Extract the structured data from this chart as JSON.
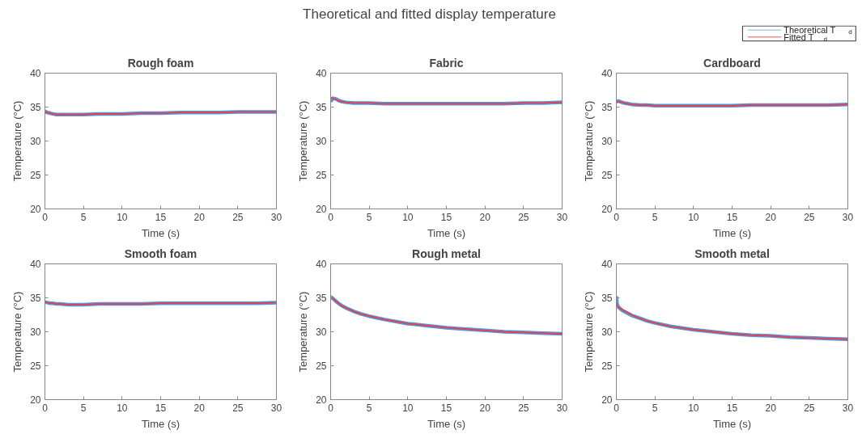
{
  "chart_data": [
    {
      "type": "line",
      "title": "Rough foam",
      "annotations": [
        "Theoretical and fitted display temperature"
      ],
      "xlabel": "Time (s)",
      "ylabel": "Temperature (°C)",
      "xlim": [
        0,
        30
      ],
      "ylim": [
        20,
        40
      ],
      "xticks": [
        0,
        5,
        10,
        15,
        20,
        25,
        30
      ],
      "yticks": [
        20,
        25,
        30,
        35,
        40
      ],
      "legend": "top right",
      "x": [
        0,
        0.3,
        0.7,
        1,
        1.5,
        2,
        3,
        4,
        5,
        7,
        10,
        12.5,
        15,
        17.5,
        20,
        22.5,
        25,
        27.5,
        30
      ],
      "series": [
        {
          "name": "Theoretical T$_{d}$",
          "color": "#4f9bd9",
          "values": [
            34.4,
            34.2,
            34.1,
            34.0,
            33.9,
            33.9,
            33.9,
            33.9,
            33.9,
            34.0,
            34.0,
            34.1,
            34.1,
            34.2,
            34.2,
            34.2,
            34.3,
            34.3,
            34.3
          ]
        },
        {
          "name": "Fitted T$_{d}$",
          "color": "#f03a50",
          "values": [
            34.3,
            34.2,
            34.1,
            34.0,
            33.9,
            33.9,
            33.9,
            33.9,
            33.9,
            34.0,
            34.0,
            34.1,
            34.1,
            34.2,
            34.2,
            34.2,
            34.3,
            34.3,
            34.3
          ]
        }
      ]
    },
    {
      "type": "line",
      "title": "Fabric",
      "xlabel": "Time (s)",
      "ylabel": "Temperature (°C)",
      "xlim": [
        0,
        30
      ],
      "ylim": [
        20,
        40
      ],
      "xticks": [
        0,
        5,
        10,
        15,
        20,
        25,
        30
      ],
      "yticks": [
        20,
        25,
        30,
        35,
        40
      ],
      "x": [
        0,
        0.3,
        0.7,
        1,
        1.5,
        2,
        3,
        4,
        5,
        7,
        10,
        12.5,
        15,
        17.5,
        20,
        22.5,
        25,
        27.5,
        30
      ],
      "series": [
        {
          "color": "#4f9bd9",
          "values": [
            35.8,
            36.3,
            36.2,
            36.0,
            35.8,
            35.7,
            35.6,
            35.6,
            35.6,
            35.5,
            35.5,
            35.5,
            35.5,
            35.5,
            35.5,
            35.5,
            35.6,
            35.6,
            35.7
          ]
        },
        {
          "color": "#f03a50",
          "values": [
            36.4,
            36.3,
            36.1,
            35.9,
            35.8,
            35.7,
            35.6,
            35.6,
            35.6,
            35.5,
            35.5,
            35.5,
            35.5,
            35.5,
            35.5,
            35.5,
            35.6,
            35.6,
            35.7
          ]
        }
      ]
    },
    {
      "type": "line",
      "title": "Cardboard",
      "xlabel": "Time (s)",
      "ylabel": "Temperature (°C)",
      "xlim": [
        0,
        30
      ],
      "ylim": [
        20,
        40
      ],
      "xticks": [
        0,
        5,
        10,
        15,
        20,
        25,
        30
      ],
      "yticks": [
        20,
        25,
        30,
        35,
        40
      ],
      "x": [
        0,
        0.3,
        0.7,
        1,
        1.5,
        2,
        3,
        4,
        5,
        7,
        10,
        12.5,
        15,
        17.5,
        20,
        22.5,
        25,
        27.5,
        30
      ],
      "series": [
        {
          "color": "#4f9bd9",
          "values": [
            35.8,
            35.9,
            35.7,
            35.6,
            35.5,
            35.4,
            35.3,
            35.3,
            35.2,
            35.2,
            35.2,
            35.2,
            35.2,
            35.3,
            35.3,
            35.3,
            35.3,
            35.3,
            35.4
          ]
        },
        {
          "color": "#f03a50",
          "values": [
            35.8,
            35.8,
            35.7,
            35.6,
            35.5,
            35.4,
            35.3,
            35.3,
            35.2,
            35.2,
            35.2,
            35.2,
            35.2,
            35.3,
            35.3,
            35.3,
            35.3,
            35.3,
            35.4
          ]
        }
      ]
    },
    {
      "type": "line",
      "title": "Smooth foam",
      "xlabel": "Time (s)",
      "ylabel": "Temperature (°C)",
      "xlim": [
        0,
        30
      ],
      "ylim": [
        20,
        40
      ],
      "xticks": [
        0,
        5,
        10,
        15,
        20,
        25,
        30
      ],
      "yticks": [
        20,
        25,
        30,
        35,
        40
      ],
      "x": [
        0,
        0.3,
        0.7,
        1,
        1.5,
        2,
        3,
        4,
        5,
        7,
        10,
        12.5,
        15,
        17.5,
        20,
        22.5,
        25,
        27.5,
        30
      ],
      "series": [
        {
          "color": "#4f9bd9",
          "values": [
            34.4,
            34.3,
            34.2,
            34.2,
            34.1,
            34.1,
            34.0,
            34.0,
            34.0,
            34.1,
            34.1,
            34.1,
            34.2,
            34.2,
            34.2,
            34.2,
            34.2,
            34.2,
            34.3
          ]
        },
        {
          "color": "#f03a50",
          "values": [
            34.4,
            34.3,
            34.2,
            34.2,
            34.1,
            34.1,
            34.0,
            34.0,
            34.0,
            34.1,
            34.1,
            34.1,
            34.2,
            34.2,
            34.2,
            34.2,
            34.2,
            34.2,
            34.3
          ]
        }
      ]
    },
    {
      "type": "line",
      "title": "Rough metal",
      "xlabel": "Time (s)",
      "ylabel": "Temperature (°C)",
      "xlim": [
        0,
        30
      ],
      "ylim": [
        20,
        40
      ],
      "xticks": [
        0,
        5,
        10,
        15,
        20,
        25,
        30
      ],
      "yticks": [
        20,
        25,
        30,
        35,
        40
      ],
      "x": [
        0,
        0.3,
        0.7,
        1,
        1.5,
        2,
        3,
        4,
        5,
        7,
        10,
        12.5,
        15,
        17.5,
        20,
        22.5,
        25,
        27.5,
        30
      ],
      "series": [
        {
          "color": "#4f9bd9",
          "values": [
            35.2,
            34.9,
            34.5,
            34.2,
            33.8,
            33.5,
            33.0,
            32.6,
            32.3,
            31.8,
            31.2,
            30.9,
            30.6,
            30.4,
            30.2,
            30.0,
            29.9,
            29.8,
            29.7
          ]
        },
        {
          "color": "#f03a50",
          "values": [
            35.1,
            34.9,
            34.5,
            34.2,
            33.8,
            33.5,
            33.0,
            32.6,
            32.3,
            31.8,
            31.2,
            30.9,
            30.6,
            30.4,
            30.2,
            30.0,
            29.9,
            29.8,
            29.7
          ]
        }
      ]
    },
    {
      "type": "line",
      "title": "Smooth metal",
      "xlabel": "Time (s)",
      "ylabel": "Temperature (°C)",
      "xlim": [
        0,
        30
      ],
      "ylim": [
        20,
        40
      ],
      "xticks": [
        0,
        5,
        10,
        15,
        20,
        25,
        30
      ],
      "yticks": [
        20,
        25,
        30,
        35,
        40
      ],
      "x": [
        0,
        0.1,
        0.3,
        0.7,
        1,
        1.5,
        2,
        3,
        4,
        5,
        7,
        10,
        12.5,
        15,
        17.5,
        20,
        22.5,
        25,
        27.5,
        30
      ],
      "series": [
        {
          "color": "#4f9bd9",
          "values": [
            35.2,
            34.0,
            33.6,
            33.2,
            33.0,
            32.7,
            32.4,
            32.0,
            31.6,
            31.3,
            30.8,
            30.3,
            30.0,
            29.7,
            29.5,
            29.4,
            29.2,
            29.1,
            29.0,
            28.9
          ]
        },
        {
          "color": "#f03a50",
          "values": [
            34.2,
            33.9,
            33.6,
            33.3,
            33.1,
            32.8,
            32.5,
            32.0,
            31.6,
            31.3,
            30.8,
            30.3,
            30.0,
            29.7,
            29.5,
            29.4,
            29.2,
            29.1,
            29.0,
            28.9
          ]
        }
      ]
    }
  ]
}
